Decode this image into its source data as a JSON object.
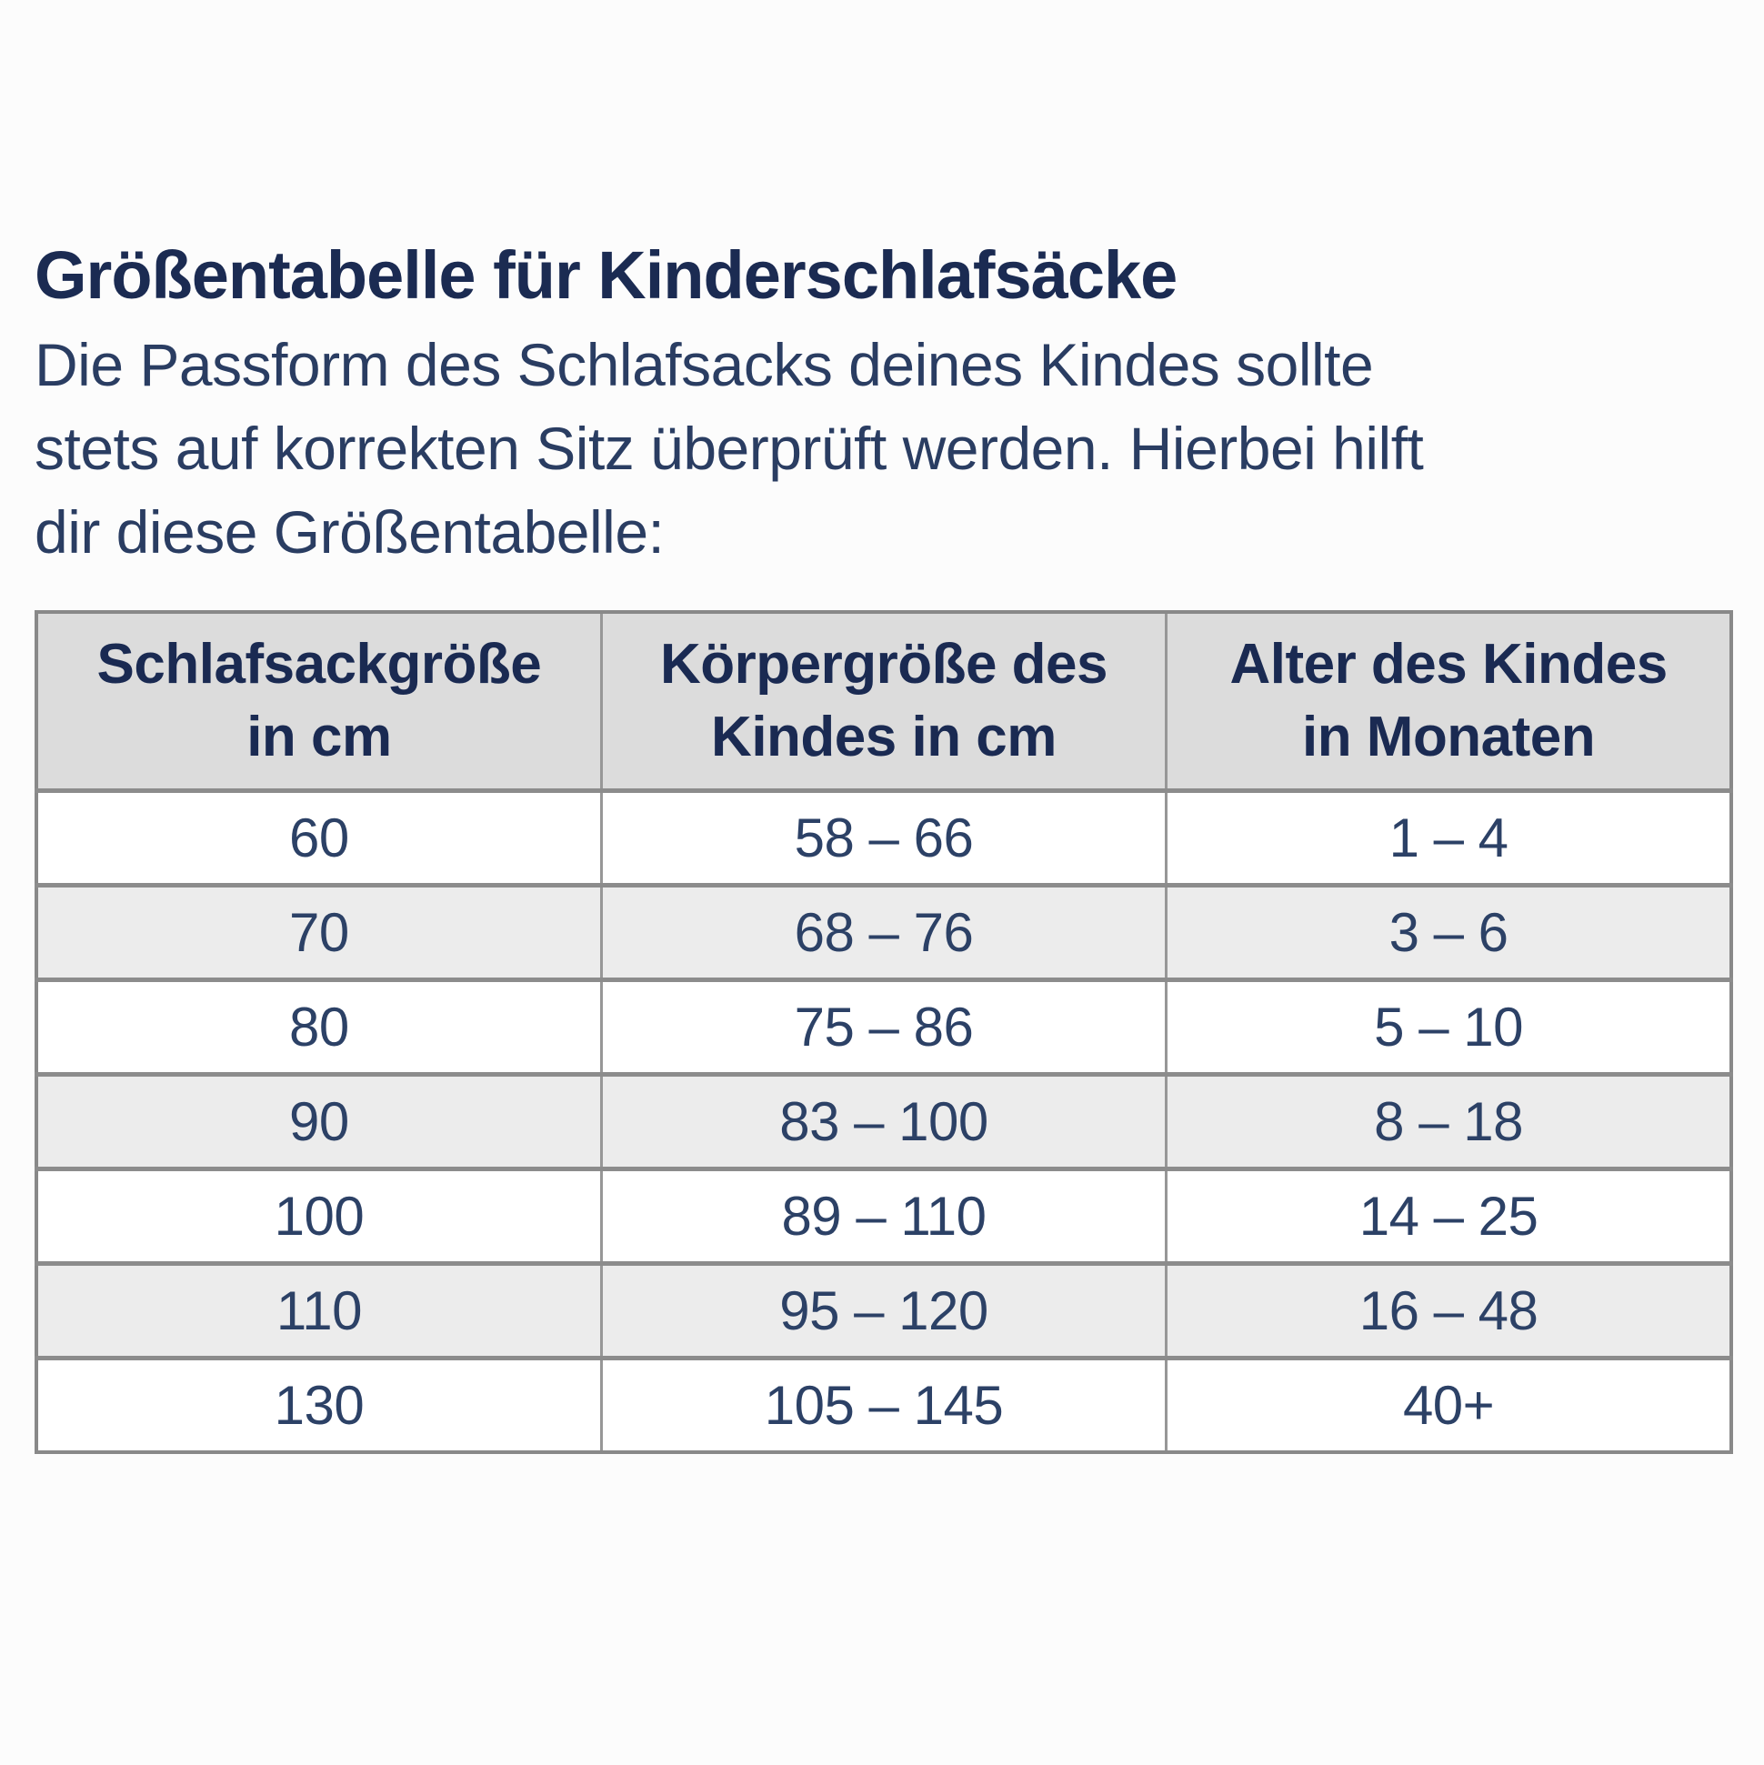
{
  "colors": {
    "text_navy_dark": "#1b2b52",
    "text_navy_body": "#2a3d62",
    "header_row_bg": "#dcdcdc",
    "stripe_row_bg": "#ececec",
    "table_border": "#898989"
  },
  "title": "Größentabelle für Kinderschlafsäcke",
  "intro_lines": [
    "Die Passform des Schlafsacks deines Kindes sollte",
    "stets auf korrekten Sitz überprüft werden. Hierbei hilft",
    "dir diese Größentabelle:"
  ],
  "table": {
    "headers": [
      [
        "Schlafsackgröße",
        "in cm"
      ],
      [
        "Körpergröße des",
        "Kindes in cm"
      ],
      [
        "Alter des Kindes",
        "in Monaten"
      ]
    ],
    "rows": [
      [
        "60",
        "58 – 66",
        "1 – 4"
      ],
      [
        "70",
        "68 – 76",
        "3 – 6"
      ],
      [
        "80",
        "75 – 86",
        "5 – 10"
      ],
      [
        "90",
        "83 – 100",
        "8 – 18"
      ],
      [
        "100",
        "89 – 110",
        "14 – 25"
      ],
      [
        "110",
        "95 – 120",
        "16 – 48"
      ],
      [
        "130",
        "105 – 145",
        "40+"
      ]
    ]
  }
}
